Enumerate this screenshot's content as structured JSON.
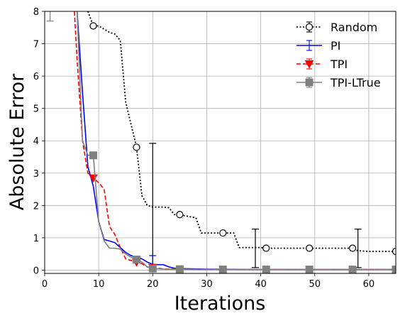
{
  "chart_data": {
    "type": "line",
    "title": "",
    "xlabel": "Iterations",
    "ylabel": "Absolute Error",
    "xlim": [
      0,
      65
    ],
    "ylim": [
      -0.1,
      8
    ],
    "xticks": [
      0,
      10,
      20,
      30,
      40,
      50,
      60
    ],
    "yticks": [
      0,
      1,
      2,
      3,
      4,
      5,
      6,
      7,
      8
    ],
    "grid": true,
    "legend_position": "top-right",
    "series": [
      {
        "name": "Random",
        "color": "#000000",
        "style": "dotted",
        "marker": "circle-open",
        "x": [
          8,
          9,
          10,
          11,
          12,
          13,
          14,
          15,
          16,
          17,
          18,
          19,
          20,
          21,
          22,
          23,
          24,
          25,
          26,
          27,
          28,
          29,
          30,
          31,
          32,
          33,
          34,
          35,
          36,
          37,
          38,
          39,
          40,
          41,
          42,
          50,
          57,
          58,
          60,
          65
        ],
        "y": [
          8.0,
          7.55,
          7.55,
          7.45,
          7.35,
          7.3,
          7.1,
          5.2,
          4.5,
          3.8,
          2.3,
          2.0,
          1.95,
          1.95,
          1.95,
          1.93,
          1.72,
          1.72,
          1.68,
          1.65,
          1.62,
          1.15,
          1.15,
          1.15,
          1.15,
          1.15,
          1.15,
          1.15,
          0.7,
          0.7,
          0.7,
          0.7,
          0.7,
          0.68,
          0.68,
          0.68,
          0.68,
          0.6,
          0.58,
          0.58
        ],
        "marker_x": [
          9,
          17,
          25,
          33,
          41,
          49,
          57,
          65
        ],
        "marker_y": [
          7.55,
          3.8,
          1.72,
          1.15,
          0.68,
          0.68,
          0.68,
          0.58
        ],
        "error_bars": [
          {
            "x": 20,
            "low": 0.0,
            "high": 3.92
          },
          {
            "x": 39,
            "low": 0.08,
            "high": 1.27
          },
          {
            "x": 58,
            "low": 0.08,
            "high": 1.27
          }
        ]
      },
      {
        "name": "PI",
        "color": "#0000ff",
        "style": "solid",
        "marker": "none",
        "x": [
          6,
          7,
          8,
          9,
          10,
          11,
          12,
          13,
          14,
          15,
          16,
          17,
          18,
          19,
          20,
          21,
          22,
          23,
          24,
          25,
          30,
          40,
          50,
          60,
          65
        ],
        "y": [
          8.0,
          5.5,
          3.2,
          2.6,
          1.5,
          0.95,
          0.9,
          0.85,
          0.7,
          0.55,
          0.45,
          0.4,
          0.35,
          0.25,
          0.18,
          0.17,
          0.17,
          0.1,
          0.06,
          0.05,
          0.03,
          0.02,
          0.02,
          0.02,
          0.02
        ],
        "error_bars": [
          {
            "x": 20,
            "low": 0.0,
            "high": 0.45
          }
        ]
      },
      {
        "name": "TPI",
        "color": "#ff0000",
        "style": "dashed",
        "marker": "triangle-down",
        "x": [
          5.5,
          6,
          7,
          8,
          9,
          10,
          11,
          12,
          13,
          14,
          15,
          16,
          17,
          18,
          19,
          20,
          21,
          22,
          25,
          30,
          40,
          50,
          60,
          65
        ],
        "y": [
          8.0,
          6.5,
          4.0,
          3.0,
          2.85,
          2.7,
          2.5,
          1.35,
          1.1,
          0.7,
          0.35,
          0.3,
          0.25,
          0.2,
          0.1,
          0.08,
          0.06,
          0.04,
          0.03,
          0.02,
          0.02,
          0.02,
          0.02,
          0.02
        ],
        "marker_x": [
          9,
          17,
          20
        ],
        "marker_y": [
          2.85,
          0.25,
          0.08
        ]
      },
      {
        "name": "TPI-LTrue",
        "color": "#808080",
        "style": "solid",
        "marker": "square",
        "x": [
          6,
          7,
          8,
          9,
          10,
          11,
          12,
          13,
          14,
          15,
          16,
          17,
          18,
          19,
          20,
          21,
          22,
          25,
          30,
          40,
          50,
          60,
          65
        ],
        "y": [
          8.0,
          4.0,
          3.55,
          3.55,
          1.5,
          0.9,
          0.68,
          0.68,
          0.65,
          0.5,
          0.4,
          0.33,
          0.25,
          0.1,
          0.05,
          0.04,
          0.03,
          0.03,
          0.02,
          0.02,
          0.02,
          0.02,
          0.02
        ],
        "marker_x": [
          9,
          17,
          20,
          25,
          33,
          41,
          49,
          57,
          65
        ],
        "marker_y": [
          3.55,
          0.33,
          0.05,
          0.03,
          0.02,
          0.02,
          0.02,
          0.02,
          0.02
        ],
        "error_bars": [
          {
            "x": 1,
            "low": 7.7,
            "high": 8.1
          }
        ]
      }
    ]
  }
}
